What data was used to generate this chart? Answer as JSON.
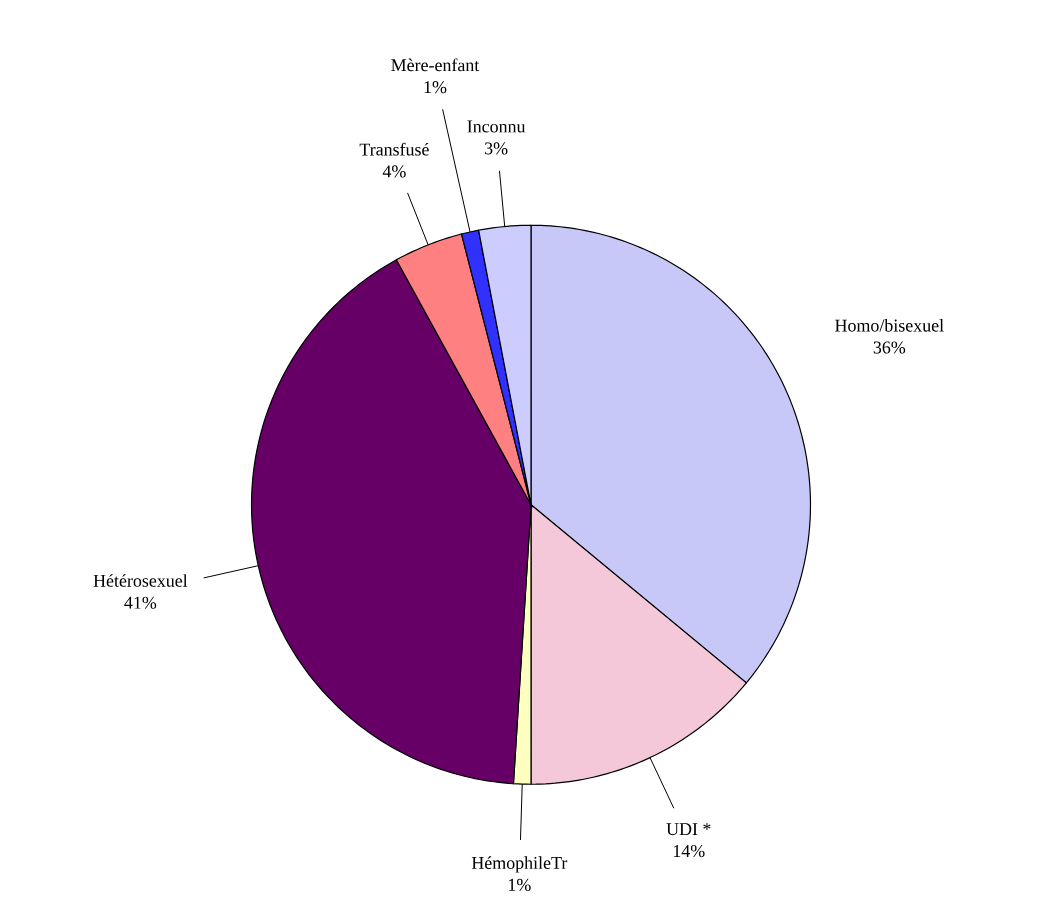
{
  "chart_data": {
    "type": "pie",
    "categories": [
      "Homo/bisexuel",
      "UDI *",
      "HémophileTr",
      "Hétérosexuel",
      "Transfusé",
      "Mère-enfant",
      "Inconnu"
    ],
    "values": [
      36,
      14,
      1,
      41,
      4,
      1,
      3
    ],
    "value_labels": [
      "36%",
      "14%",
      "1%",
      "41%",
      "4%",
      "1%",
      "3%"
    ],
    "colors": [
      "#c8c8f8",
      "#f4c8d8",
      "#ffffc0",
      "#660066",
      "#ff8080",
      "#3030ff",
      "#ccccff"
    ]
  }
}
